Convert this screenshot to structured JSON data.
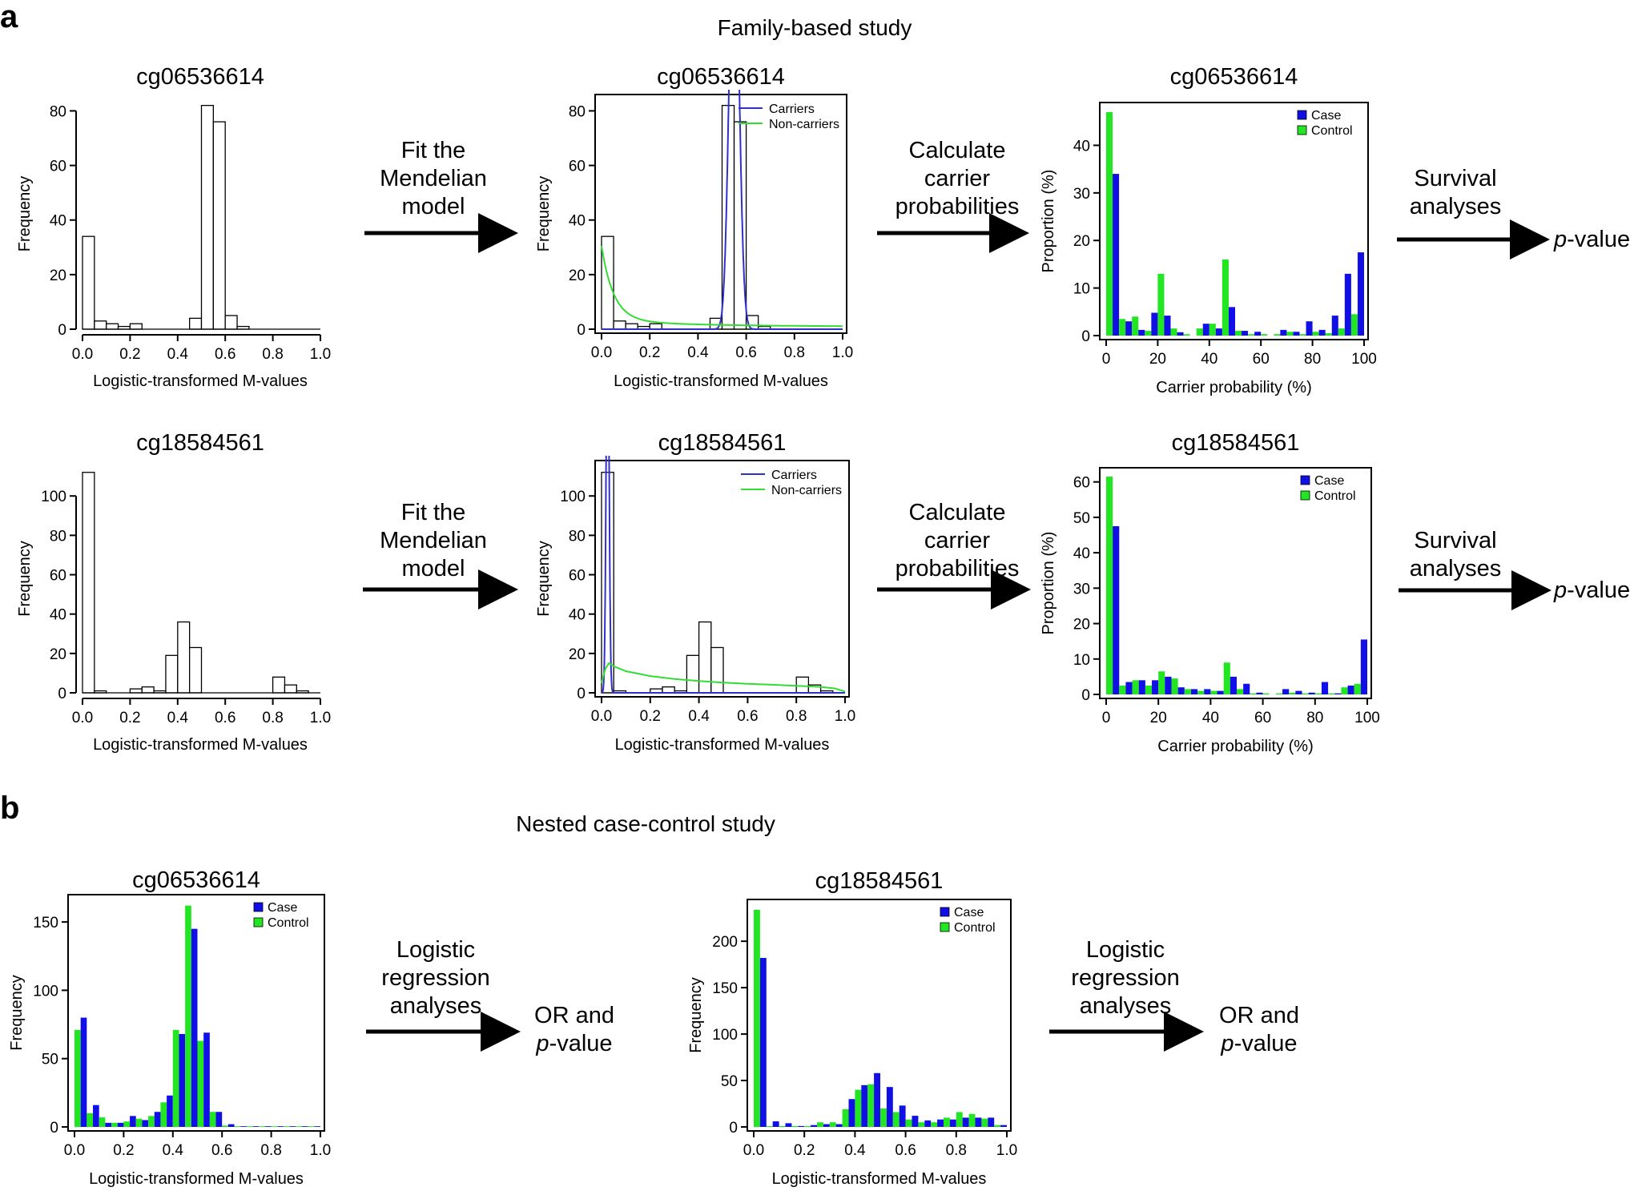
{
  "figure": {
    "panel_a_label": "a",
    "panel_b_label": "b",
    "section_a_title": "Family-based study",
    "section_b_title": "Nested case-control study"
  },
  "steps": {
    "fit": [
      "Fit the",
      "Mendelian",
      "model"
    ],
    "carrier": [
      "Calculate",
      "carrier",
      "probabilities"
    ],
    "survival": [
      "Survival",
      "analyses"
    ],
    "logistic": [
      "Logistic",
      "regression",
      "analyses"
    ],
    "pvalue_italic": "p",
    "pvalue_rest": "-value",
    "or_line": "OR and"
  },
  "colors": {
    "case": "#1010e6",
    "control": "#22e622",
    "carriers_curve": "#3030c8",
    "noncarriers_curve": "#33dd33",
    "hist_fill": "#ffffff",
    "axis": "#000000"
  },
  "chart_data": [
    {
      "id": "a1-hist",
      "type": "bar",
      "title": "cg06536614",
      "xlabel": "Logistic-transformed M-values",
      "ylabel": "Frequency",
      "xlim": [
        0,
        1
      ],
      "ylim": [
        0,
        86
      ],
      "xticks": [
        "0.0",
        "0.2",
        "0.4",
        "0.6",
        "0.8",
        "1.0"
      ],
      "yticks": [
        0,
        20,
        40,
        60,
        80
      ],
      "bin_width": 0.05,
      "bins_start": [
        0,
        0.05,
        0.1,
        0.15,
        0.2,
        0.25,
        0.3,
        0.35,
        0.4,
        0.45,
        0.5,
        0.55,
        0.6,
        0.65,
        0.7,
        0.75,
        0.8,
        0.85,
        0.9,
        0.95
      ],
      "values": [
        34,
        3,
        2,
        1,
        2,
        0,
        0,
        0,
        0,
        4,
        82,
        76,
        5,
        1,
        0,
        0,
        0,
        0,
        0,
        0
      ]
    },
    {
      "id": "a1-fit",
      "type": "bar",
      "title": "cg06536614",
      "xlabel": "Logistic-transformed M-values",
      "ylabel": "Frequency",
      "xlim": [
        0,
        1
      ],
      "ylim": [
        0,
        86
      ],
      "xticks": [
        "0.0",
        "0.2",
        "0.4",
        "0.6",
        "0.8",
        "1.0"
      ],
      "yticks": [
        0,
        20,
        40,
        60,
        80
      ],
      "bin_width": 0.05,
      "bins_start": [
        0,
        0.05,
        0.1,
        0.15,
        0.2,
        0.25,
        0.3,
        0.35,
        0.4,
        0.45,
        0.5,
        0.55,
        0.6,
        0.65,
        0.7,
        0.75,
        0.8,
        0.85,
        0.9,
        0.95
      ],
      "values": [
        34,
        3,
        2,
        1,
        2,
        0,
        0,
        0,
        0,
        4,
        82,
        76,
        5,
        1,
        0,
        0,
        0,
        0,
        0,
        0
      ],
      "legend": [
        "Carriers",
        "Non-carriers"
      ],
      "legend_position": "top-right",
      "curves": [
        {
          "name": "Carriers",
          "kind": "normal",
          "mean": 0.55,
          "sd": 0.02,
          "scale": 8.0
        },
        {
          "name": "Non-carriers",
          "kind": "decay",
          "base": 1.0,
          "amp": 27,
          "rate": 20
        }
      ]
    },
    {
      "id": "a1-prob",
      "type": "bar",
      "title": "cg06536614",
      "xlabel": "Carrier probability (%)",
      "ylabel": "Proportion (%)",
      "xlim": [
        0,
        100
      ],
      "ylim": [
        0,
        49
      ],
      "xticks": [
        "0",
        "20",
        "40",
        "60",
        "80",
        "100"
      ],
      "yticks": [
        0,
        10,
        20,
        30,
        40
      ],
      "legend": [
        "Case",
        "Control"
      ],
      "legend_position": "top-right",
      "bin_width": 5,
      "bins_start": [
        0,
        5,
        10,
        15,
        20,
        25,
        30,
        35,
        40,
        45,
        50,
        55,
        60,
        65,
        70,
        75,
        80,
        85,
        90,
        95
      ],
      "series": [
        {
          "name": "Control",
          "values": [
            47,
            3.5,
            4,
            1,
            13,
            1.5,
            0.3,
            1.5,
            2.5,
            16,
            1,
            0.3,
            0.3,
            0.3,
            0.8,
            0.3,
            0.8,
            0.5,
            1.5,
            4.5
          ]
        },
        {
          "name": "Case",
          "values": [
            34,
            3,
            1.2,
            4.8,
            4.2,
            0.7,
            0,
            2.5,
            1.5,
            6,
            1,
            0.8,
            0,
            1.2,
            0.8,
            3,
            1.2,
            4.2,
            13,
            17.5
          ]
        }
      ]
    },
    {
      "id": "a2-hist",
      "type": "bar",
      "title": "cg18584561",
      "xlabel": "Logistic-transformed M-values",
      "ylabel": "Frequency",
      "xlim": [
        0,
        1
      ],
      "ylim": [
        0,
        118
      ],
      "xticks": [
        "0.0",
        "0.2",
        "0.4",
        "0.6",
        "0.8",
        "1.0"
      ],
      "yticks": [
        0,
        20,
        40,
        60,
        80,
        100
      ],
      "bin_width": 0.05,
      "bins_start": [
        0,
        0.05,
        0.1,
        0.15,
        0.2,
        0.25,
        0.3,
        0.35,
        0.4,
        0.45,
        0.5,
        0.55,
        0.6,
        0.65,
        0.7,
        0.75,
        0.8,
        0.85,
        0.9,
        0.95
      ],
      "values": [
        112,
        1,
        0,
        0,
        2,
        3,
        1,
        19,
        36,
        23,
        0,
        0,
        0,
        0,
        0,
        0,
        8,
        4,
        1,
        0
      ]
    },
    {
      "id": "a2-fit",
      "type": "bar",
      "title": "cg18584561",
      "xlabel": "Logistic-transformed M-values",
      "ylabel": "Frequency",
      "xlim": [
        0,
        1
      ],
      "ylim": [
        0,
        118
      ],
      "xticks": [
        "0.0",
        "0.2",
        "0.4",
        "0.6",
        "0.8",
        "1.0"
      ],
      "yticks": [
        0,
        20,
        40,
        60,
        80,
        100
      ],
      "bin_width": 0.05,
      "bins_start": [
        0,
        0.05,
        0.1,
        0.15,
        0.2,
        0.25,
        0.3,
        0.35,
        0.4,
        0.45,
        0.5,
        0.55,
        0.6,
        0.65,
        0.7,
        0.75,
        0.8,
        0.85,
        0.9,
        0.95
      ],
      "values": [
        112,
        1,
        0,
        0,
        2,
        3,
        1,
        19,
        36,
        23,
        0,
        0,
        0,
        0,
        0,
        0,
        8,
        4,
        1,
        0
      ],
      "legend": [
        "Carriers",
        "Non-carriers"
      ],
      "legend_position": "top-right",
      "curves": [
        {
          "name": "Carriers",
          "kind": "normal",
          "mean": 0.025,
          "sd": 0.006,
          "scale": 3.0
        },
        {
          "name": "Non-carriers",
          "kind": "hump",
          "points": [
            [
              0,
              5
            ],
            [
              0.015,
              12
            ],
            [
              0.03,
              15
            ],
            [
              0.06,
              13
            ],
            [
              0.1,
              11
            ],
            [
              0.2,
              8.5
            ],
            [
              0.3,
              7
            ],
            [
              0.4,
              6
            ],
            [
              0.5,
              5.2
            ],
            [
              0.6,
              4.6
            ],
            [
              0.7,
              4.1
            ],
            [
              0.8,
              3.6
            ],
            [
              0.9,
              3.0
            ],
            [
              0.96,
              2.2
            ],
            [
              1.0,
              0.6
            ]
          ]
        }
      ]
    },
    {
      "id": "a2-prob",
      "type": "bar",
      "title": "cg18584561",
      "xlabel": "Carrier probability (%)",
      "ylabel": "Proportion (%)",
      "xlim": [
        0,
        100
      ],
      "ylim": [
        0,
        64
      ],
      "xticks": [
        "0",
        "20",
        "40",
        "60",
        "80",
        "100"
      ],
      "yticks": [
        0,
        10,
        20,
        30,
        40,
        50,
        60
      ],
      "legend": [
        "Case",
        "Control"
      ],
      "legend_position": "top-right",
      "bin_width": 5,
      "bins_start": [
        0,
        5,
        10,
        15,
        20,
        25,
        30,
        35,
        40,
        45,
        50,
        55,
        60,
        65,
        70,
        75,
        80,
        85,
        90,
        95
      ],
      "series": [
        {
          "name": "Control",
          "values": [
            61.5,
            2.5,
            4,
            2.5,
            6.5,
            4.5,
            1.5,
            1,
            1,
            9,
            1.5,
            0.3,
            0.3,
            0.3,
            0.5,
            0.3,
            0.3,
            0.3,
            2,
            3
          ]
        },
        {
          "name": "Case",
          "values": [
            47.5,
            3.5,
            4,
            4,
            5,
            2,
            1.5,
            1.5,
            1,
            5,
            3,
            0.5,
            0,
            1.5,
            1,
            0.5,
            3.5,
            0.3,
            2.5,
            15.5
          ]
        }
      ]
    },
    {
      "id": "b1",
      "type": "bar",
      "title": "cg06536614",
      "xlabel": "Logistic-transformed M-values",
      "ylabel": "Frequency",
      "xlim": [
        0,
        1
      ],
      "ylim": [
        0,
        170
      ],
      "xticks": [
        "0.0",
        "0.2",
        "0.4",
        "0.6",
        "0.8",
        "1.0"
      ],
      "yticks": [
        0,
        50,
        100,
        150
      ],
      "legend": [
        "Case",
        "Control"
      ],
      "legend_position": "top-right",
      "bin_width": 0.05,
      "bins_start": [
        0,
        0.05,
        0.1,
        0.15,
        0.2,
        0.25,
        0.3,
        0.35,
        0.4,
        0.45,
        0.5,
        0.55,
        0.6,
        0.65,
        0.7,
        0.75,
        0.8,
        0.85,
        0.9,
        0.95
      ],
      "series": [
        {
          "name": "Control",
          "values": [
            71,
            10,
            7,
            3,
            4,
            6,
            8,
            18,
            71,
            162,
            63,
            11,
            1,
            0.5,
            0.5,
            0.5,
            0.5,
            0.5,
            0.5,
            0.5
          ]
        },
        {
          "name": "Case",
          "values": [
            80,
            16,
            3,
            3,
            8,
            5,
            11,
            23,
            68,
            145,
            69,
            11,
            2,
            0.5,
            0.5,
            0.5,
            0.5,
            0.5,
            0.5,
            0.5
          ]
        }
      ]
    },
    {
      "id": "b2",
      "type": "bar",
      "title": "cg18584561",
      "xlabel": "Logistic-transformed M-values",
      "ylabel": "Frequency",
      "xlim": [
        0,
        1
      ],
      "ylim": [
        0,
        245
      ],
      "xticks": [
        "0.0",
        "0.2",
        "0.4",
        "0.6",
        "0.8",
        "1.0"
      ],
      "yticks": [
        0,
        50,
        100,
        150,
        200
      ],
      "legend": [
        "Case",
        "Control"
      ],
      "legend_position": "top-right",
      "bin_width": 0.05,
      "bins_start": [
        0,
        0.05,
        0.1,
        0.15,
        0.2,
        0.25,
        0.3,
        0.35,
        0.4,
        0.45,
        0.5,
        0.55,
        0.6,
        0.65,
        0.7,
        0.75,
        0.8,
        0.85,
        0.9,
        0.95
      ],
      "series": [
        {
          "name": "Control",
          "values": [
            234,
            1,
            1,
            1,
            1,
            5,
            5,
            19,
            40,
            46,
            20,
            16,
            8,
            5,
            5,
            10,
            16,
            14,
            9,
            2
          ]
        },
        {
          "name": "Case",
          "values": [
            182,
            6,
            4,
            1,
            2,
            3,
            3,
            30,
            45,
            58,
            43,
            23,
            12,
            7,
            8,
            8,
            10,
            10,
            10,
            2
          ]
        }
      ]
    }
  ]
}
